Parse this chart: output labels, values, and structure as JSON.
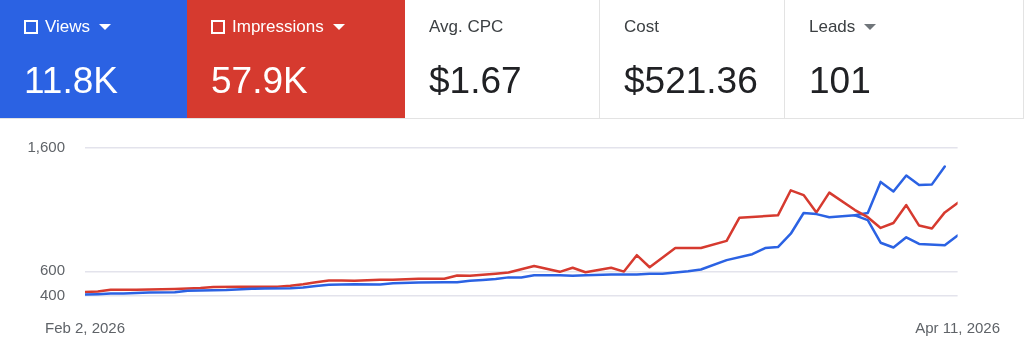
{
  "chart_data": {
    "type": "line",
    "legend": "top",
    "grid": "y",
    "marker": "none",
    "line_style": "solid",
    "annotations": [
      "11.8K",
      "57.9K",
      "Avg. CPC",
      "$1.67",
      "Cost",
      "$521.36",
      "Leads",
      "101"
    ],
    "xlim": [
      "2026-02-02",
      "2026-04-11"
    ],
    "xticks": [
      {
        "value": "2026-02-02",
        "label": "Feb 2, 2026"
      },
      {
        "value": "2026-04-11",
        "label": "Apr 11, 2026"
      }
    ],
    "ylim": [
      400,
      1600
    ],
    "yticks": [
      {
        "value": 400,
        "label": "400"
      },
      {
        "value": 600,
        "label": "600"
      },
      {
        "value": 1600,
        "label": "1,600"
      }
    ],
    "series": [
      {
        "name": "Views",
        "color": "#2b62e3",
        "x": [
          "2026-02-02",
          "2026-02-03",
          "2026-02-04",
          "2026-02-05",
          "2026-02-07",
          "2026-02-09",
          "2026-02-10",
          "2026-02-13",
          "2026-02-15",
          "2026-02-16",
          "2026-02-18",
          "2026-02-19",
          "2026-02-20",
          "2026-02-21",
          "2026-02-23",
          "2026-02-25",
          "2026-02-26",
          "2026-02-28",
          "2026-03-02",
          "2026-03-03",
          "2026-03-04",
          "2026-03-05",
          "2026-03-06",
          "2026-03-07",
          "2026-03-08",
          "2026-03-09",
          "2026-03-11",
          "2026-03-12",
          "2026-03-13",
          "2026-03-15",
          "2026-03-17",
          "2026-03-18",
          "2026-03-19",
          "2026-03-21",
          "2026-03-22",
          "2026-03-24",
          "2026-03-26",
          "2026-03-27",
          "2026-03-28",
          "2026-03-29",
          "2026-03-30",
          "2026-03-31",
          "2026-04-01",
          "2026-04-03",
          "2026-04-04",
          "2026-04-05",
          "2026-04-06",
          "2026-04-07",
          "2026-04-08",
          "2026-04-10",
          "2026-04-11"
        ],
        "values": [
          412,
          415,
          420,
          421,
          429,
          430,
          442,
          448,
          459,
          461,
          462,
          468,
          481,
          491,
          495,
          494,
          503,
          510,
          512,
          511,
          524,
          530,
          538,
          551,
          550,
          569,
          568,
          565,
          568,
          574,
          575,
          580,
          580,
          600,
          615,
          691,
          739,
          789,
          797,
          905,
          1073,
          1064,
          1039,
          1054,
          1015,
          832,
          793,
          876,
          822,
          812,
          890
        ]
      },
      {
        "name": "Impressions",
        "color": "#d63a2f",
        "x": [
          "2026-02-02",
          "2026-02-03",
          "2026-02-04",
          "2026-02-06",
          "2026-02-07",
          "2026-02-09",
          "2026-02-11",
          "2026-02-12",
          "2026-02-14",
          "2026-02-16",
          "2026-02-17",
          "2026-02-18",
          "2026-02-19",
          "2026-02-20",
          "2026-02-21",
          "2026-02-22",
          "2026-02-23",
          "2026-02-25",
          "2026-02-26",
          "2026-02-28",
          "2026-03-02",
          "2026-03-03",
          "2026-03-04",
          "2026-03-05",
          "2026-03-06",
          "2026-03-07",
          "2026-03-09",
          "2026-03-11",
          "2026-03-12",
          "2026-03-13",
          "2026-03-15",
          "2026-03-16",
          "2026-03-17",
          "2026-03-18",
          "2026-03-20",
          "2026-03-22",
          "2026-03-24",
          "2026-03-25",
          "2026-03-28",
          "2026-03-29",
          "2026-03-30",
          "2026-03-31",
          "2026-04-01",
          "2026-04-03",
          "2026-04-04",
          "2026-04-05",
          "2026-04-06",
          "2026-04-07",
          "2026-04-08",
          "2026-04-09",
          "2026-04-10",
          "2026-04-11"
        ],
        "values": [
          432,
          436,
          450,
          451,
          453,
          457,
          464,
          473,
          474,
          476,
          476,
          484,
          495,
          512,
          525,
          525,
          523,
          532,
          532,
          540,
          540,
          566,
          565,
          573,
          581,
          591,
          643,
          596,
          629,
          593,
          629,
          598,
          731,
          633,
          789,
          789,
          847,
          1035,
          1054,
          1257,
          1218,
          1078,
          1238,
          1097,
          1039,
          952,
          992,
          1137,
          971,
          948,
          1078,
          1155
        ]
      },
      {
        "color": "#2b62e3",
        "x": [
          "2026-04-03",
          "2026-04-04",
          "2026-04-05",
          "2026-04-06",
          "2026-04-07",
          "2026-04-08",
          "2026-04-09",
          "2026-04-10"
        ],
        "values": [
          1054,
          1073,
          1325,
          1247,
          1377,
          1300,
          1305,
          1450
        ]
      }
    ]
  }
}
